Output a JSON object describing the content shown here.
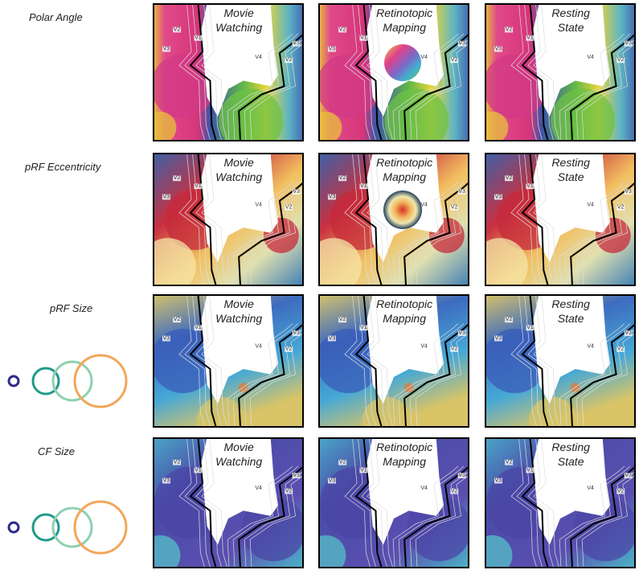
{
  "rows": [
    {
      "label": "Polar Angle"
    },
    {
      "label": "pRF Eccentricity"
    },
    {
      "label": "pRF Size"
    },
    {
      "label": "CF Size"
    }
  ],
  "columns": [
    {
      "line1": "Movie",
      "line2": "Watching"
    },
    {
      "line1": "Retinotopic",
      "line2": "Mapping"
    },
    {
      "line1": "Resting",
      "line2": "State"
    }
  ],
  "area_labels": [
    "V2",
    "V1",
    "V3",
    "V4",
    "V2",
    "V3"
  ]
}
